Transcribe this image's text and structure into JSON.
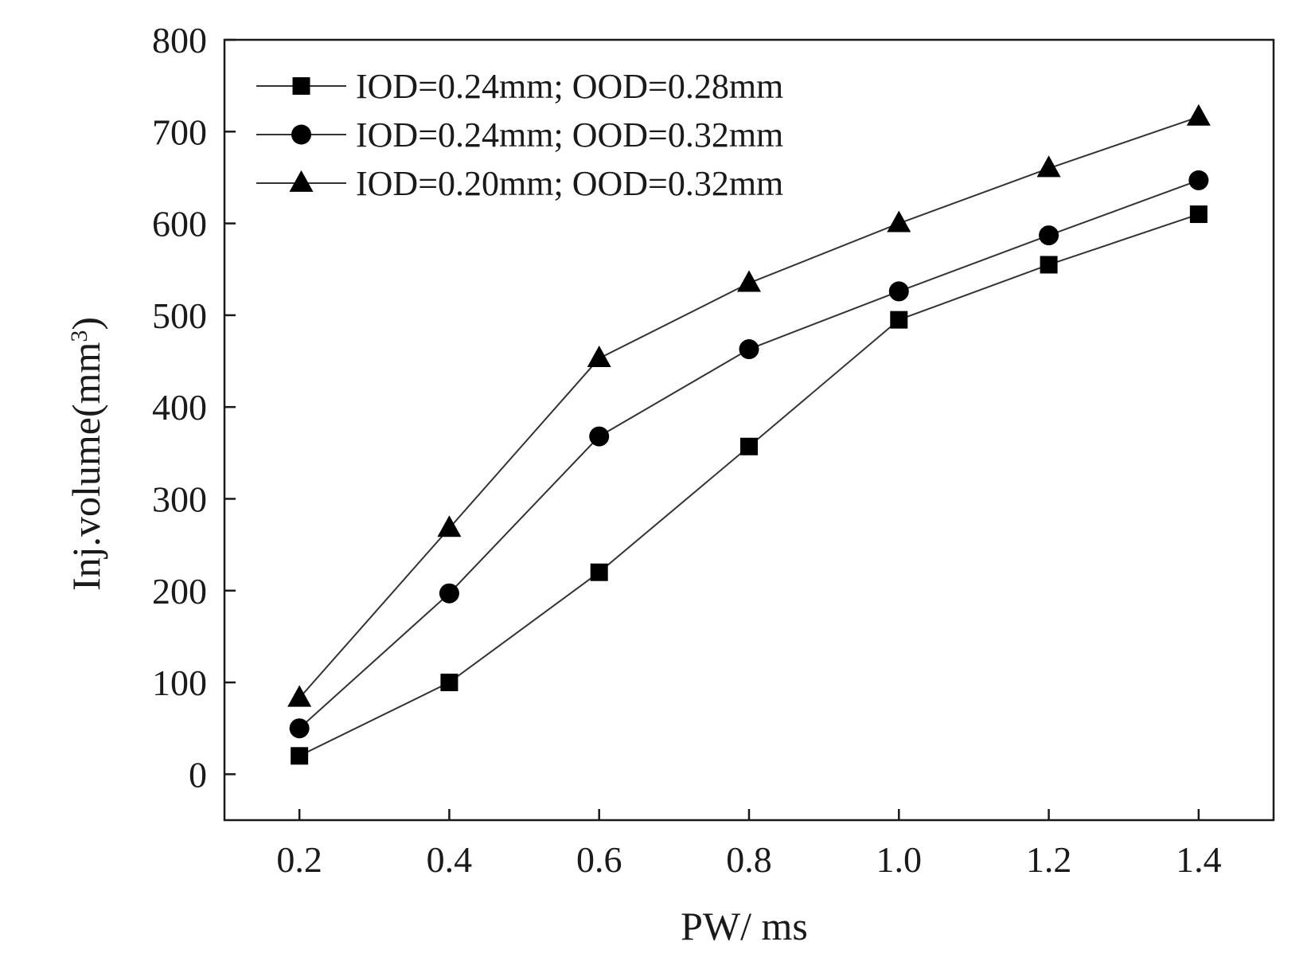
{
  "chart_data": {
    "type": "line",
    "title": "",
    "xlabel": "PW/ ms",
    "ylabel": "Inj.volume(mm",
    "ylabel_superscript": "3",
    "ylabel_suffix": ")",
    "x": [
      0.2,
      0.4,
      0.6,
      0.8,
      1.0,
      1.2,
      1.4
    ],
    "x_tick_labels": [
      "0.2",
      "0.4",
      "0.6",
      "0.8",
      "1.0",
      "1.2",
      "1.4"
    ],
    "y_tick_values": [
      0,
      100,
      200,
      300,
      400,
      500,
      600,
      700,
      800
    ],
    "y_tick_labels": [
      "0",
      "100",
      "200",
      "300",
      "400",
      "500",
      "600",
      "700",
      "800"
    ],
    "xlim": [
      0.1,
      1.5
    ],
    "ylim": [
      -50,
      800
    ],
    "grid": false,
    "legend_position": "top-left",
    "series": [
      {
        "name": "IOD=0.24mm; OOD=0.28mm",
        "marker": "square",
        "values": [
          20,
          100,
          220,
          357,
          495,
          555,
          610
        ]
      },
      {
        "name": "IOD=0.24mm; OOD=0.32mm",
        "marker": "circle",
        "values": [
          50,
          197,
          368,
          463,
          526,
          587,
          647
        ]
      },
      {
        "name": "IOD=0.20mm; OOD=0.32mm",
        "marker": "triangle",
        "values": [
          83,
          268,
          453,
          535,
          600,
          660,
          716
        ]
      }
    ],
    "colors": {
      "line": "#333333",
      "marker": "#000000",
      "axis": "#1a1a1a"
    }
  }
}
